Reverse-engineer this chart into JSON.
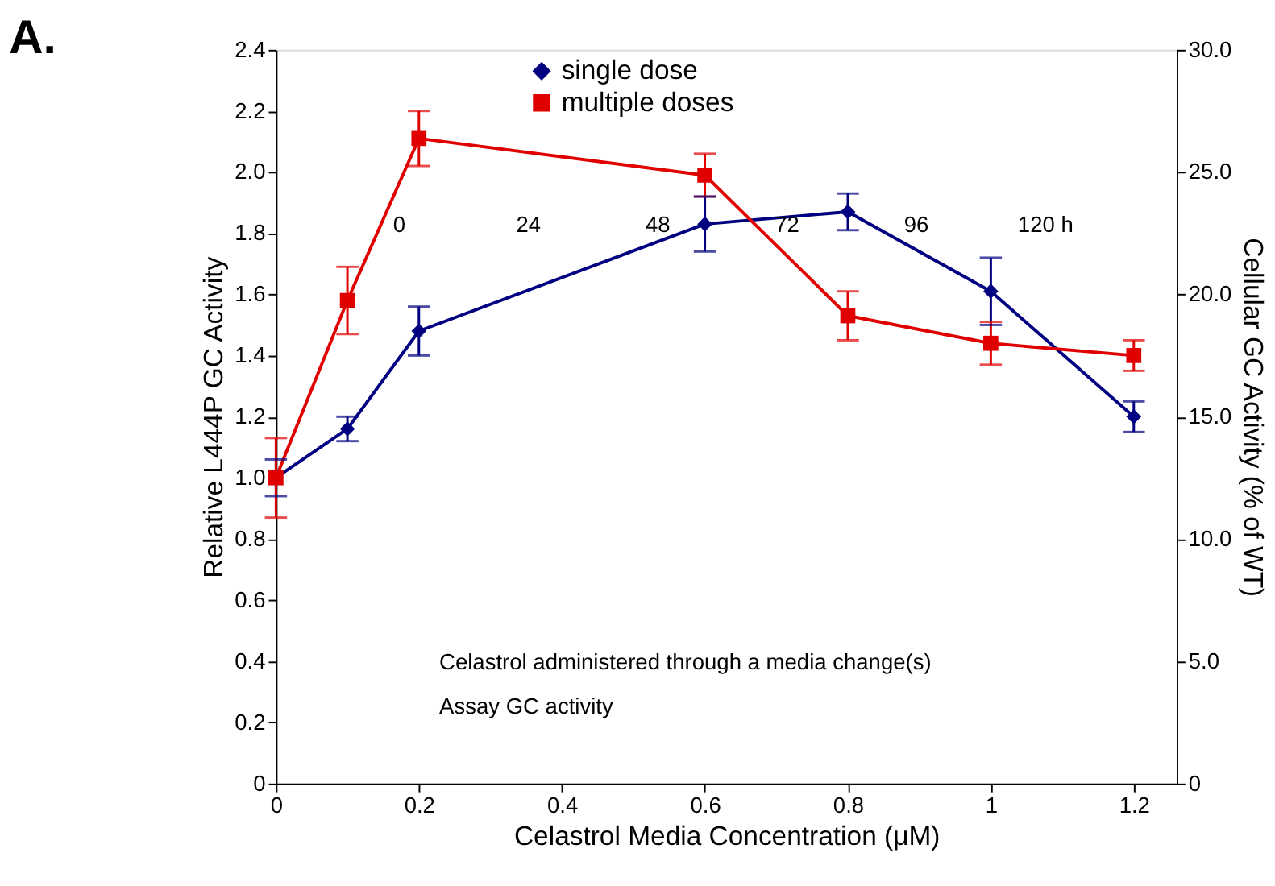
{
  "chart_data": {
    "type": "line",
    "title": "A.",
    "xlabel": "Celastrol Media Concentration (μM)",
    "ylabel": "Relative L444P GC Activity",
    "y2label": "Cellular GC Activity (% of WT)",
    "xlim": [
      0,
      1.26
    ],
    "xticks": [
      0,
      0.2,
      0.4,
      0.6,
      0.8,
      1,
      1.2
    ],
    "ylim": [
      0,
      2.4
    ],
    "yticks": [
      0,
      0.2,
      0.4,
      0.6,
      0.8,
      {
        "value": 1,
        "label": "1.0"
      },
      1.2,
      1.4,
      1.6,
      1.8,
      {
        "value": 2,
        "label": "2.0"
      },
      2.2,
      2.4
    ],
    "y2lim": [
      0,
      30
    ],
    "y2ticks": [
      0,
      {
        "value": 5,
        "label": "5.0"
      },
      {
        "value": 10,
        "label": "10.0"
      },
      {
        "value": 15,
        "label": "15.0"
      },
      {
        "value": 20,
        "label": "20.0"
      },
      {
        "value": 25,
        "label": "25.0"
      },
      {
        "value": 30,
        "label": "30.0"
      }
    ],
    "grid": false,
    "legend": "top",
    "line_style": "solid",
    "x": [
      0,
      0.1,
      0.2,
      0.6,
      0.8,
      1.0,
      1.2
    ],
    "series": [
      {
        "name": "single dose",
        "color": "#000080",
        "marker": "diamond",
        "values": [
          1.0,
          1.16,
          1.48,
          1.83,
          1.87,
          1.61,
          1.2
        ],
        "errors": [
          0.06,
          0.04,
          0.08,
          0.09,
          0.06,
          0.11,
          0.05
        ]
      },
      {
        "name": "multiple doses",
        "color": "#e00000",
        "marker": "square",
        "values": [
          1.0,
          1.58,
          2.11,
          1.99,
          1.53,
          1.44,
          1.4
        ],
        "errors": [
          0.13,
          0.11,
          0.09,
          0.07,
          0.08,
          0.07,
          0.05
        ]
      }
    ],
    "annotations": [
      "0",
      "24",
      "48",
      "72",
      "96",
      "120 h",
      "Celastrol administered through a media change(s)",
      "Assay GC activity"
    ]
  }
}
